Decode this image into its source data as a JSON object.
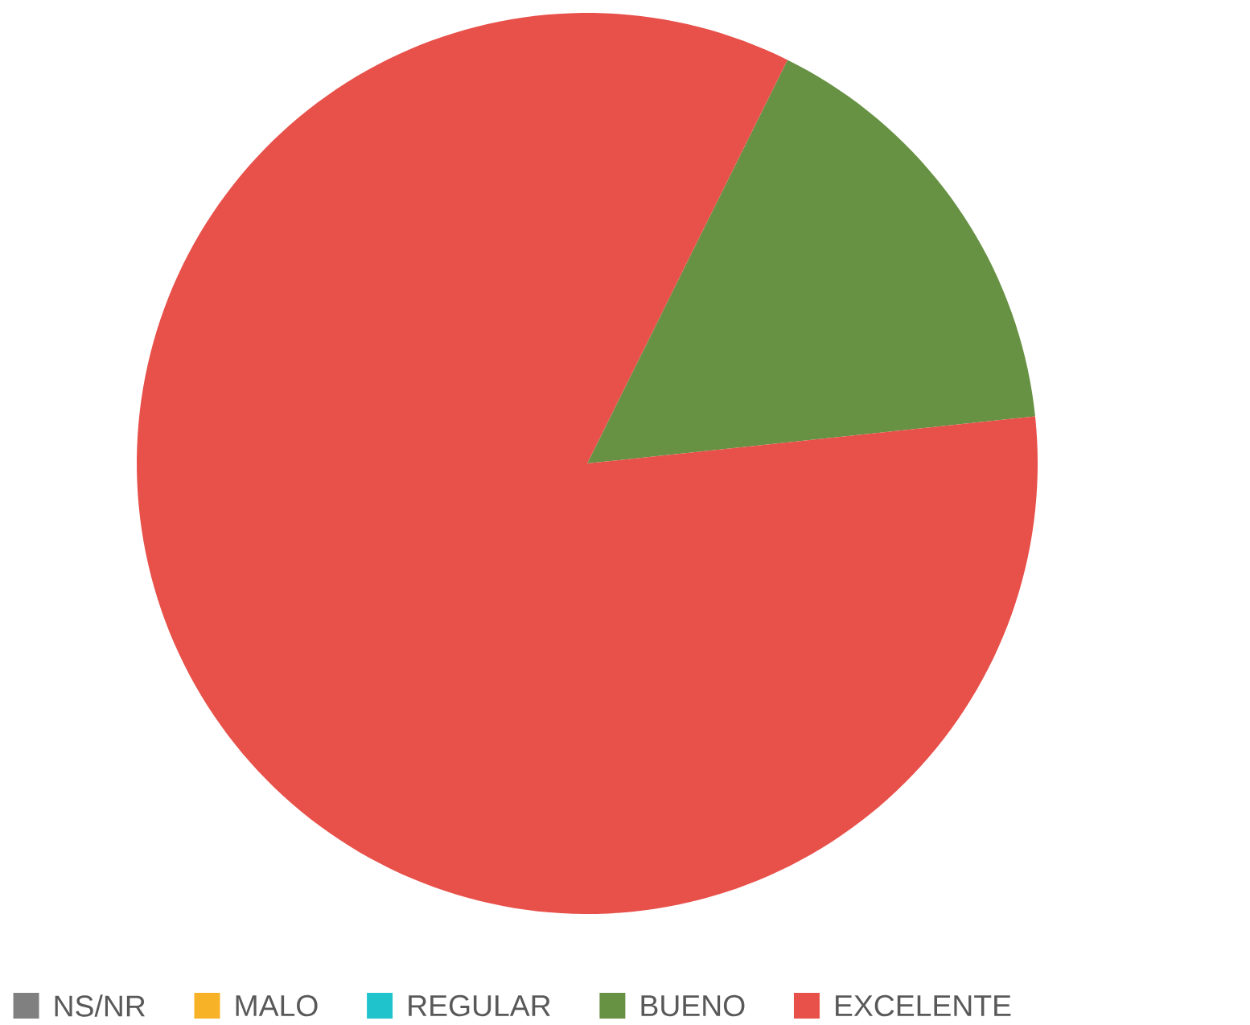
{
  "chart_data": {
    "type": "pie",
    "categories": [
      "NS/NR",
      "MALO",
      "REGULAR",
      "BUENO",
      "EXCELENTE"
    ],
    "values": [
      0,
      0,
      0,
      16,
      84
    ],
    "colors": [
      "#808080",
      "#f7b227",
      "#1ec3cc",
      "#679143",
      "#e8504a"
    ],
    "legend": "bottom"
  }
}
